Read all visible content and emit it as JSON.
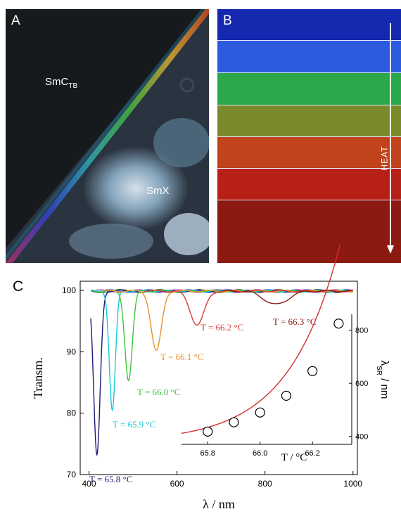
{
  "panels": {
    "a": {
      "label": "A",
      "phase_top": "SmC",
      "phase_top_sub": "TB",
      "phase_bottom": "SmX"
    },
    "b": {
      "label": "B",
      "arrow_label": "HEAT",
      "bands": [
        "#1529b0",
        "#2c5be0",
        "#2aa84a",
        "#7a8a2a",
        "#c0431c",
        "#b72016",
        "#8c1a12"
      ]
    },
    "c": {
      "label": "C"
    }
  },
  "chart_data": [
    {
      "type": "line",
      "xlabel": "λ / nm",
      "ylabel": "Transm.",
      "xlim": [
        380,
        1010
      ],
      "ylim": [
        70,
        101.5
      ],
      "xticks": [
        400,
        600,
        800,
        1000
      ],
      "yticks": [
        70,
        80,
        90,
        100
      ],
      "series": [
        {
          "name": "T = 65.8 °C",
          "color": "#1a1a7a",
          "min_x": 418,
          "min_y": 73.2,
          "width": 14
        },
        {
          "name": "T = 65.9 °C",
          "color": "#19c8d8",
          "min_x": 453,
          "min_y": 80.5,
          "width": 13
        },
        {
          "name": "T = 66.0 °C",
          "color": "#3cc43c",
          "min_x": 490,
          "min_y": 85.5,
          "width": 16
        },
        {
          "name": "T = 66.1 °C",
          "color": "#e8902c",
          "min_x": 553,
          "min_y": 90.2,
          "width": 22
        },
        {
          "name": "T = 66.2 °C",
          "color": "#d83a3a",
          "min_x": 646,
          "min_y": 94.5,
          "width": 30
        },
        {
          "name": "T = 66.3 °C",
          "color": "#8b1a1a",
          "min_x": 825,
          "min_y": 97.8,
          "width": 50
        }
      ],
      "extra_trace_colors": [
        "#000000",
        "#3050d0",
        "#b030b0"
      ]
    },
    {
      "type": "scatter",
      "xlabel": "T / °C",
      "ylabel_main": "λ",
      "ylabel_sub": "SR",
      "ylabel_unit": " / nm",
      "xlim": [
        65.7,
        66.35
      ],
      "ylim": [
        370,
        860
      ],
      "xticks": [
        65.8,
        66.0,
        66.2
      ],
      "xticklabels": [
        "65.8",
        "66.0",
        "66.2"
      ],
      "yticks": [
        400,
        600,
        800
      ],
      "x": [
        65.8,
        65.9,
        66.0,
        66.1,
        66.2,
        66.3
      ],
      "y": [
        418,
        453,
        490,
        553,
        646,
        825
      ],
      "fit_color": "#d03030"
    }
  ]
}
